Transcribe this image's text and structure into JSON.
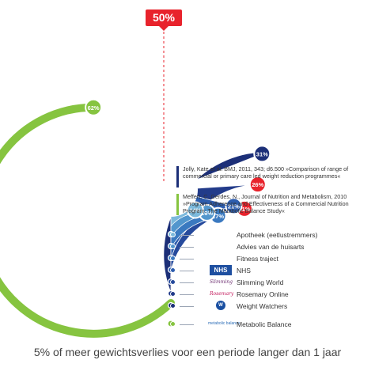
{
  "chart_data": {
    "type": "radial-bar",
    "marker": "50%",
    "series": [
      {
        "name": "Metabolic Balance",
        "value": 62,
        "label": "62%",
        "color": "#86c440"
      },
      {
        "name": "Weight Watchers",
        "value": 31,
        "label": "31%",
        "color": "#1c2f78"
      },
      {
        "name": "Rosemary Online",
        "value": 26,
        "label": "26%",
        "color": "#223b8a"
      },
      {
        "name": "Slimming World",
        "value": 21,
        "label": "21%",
        "color": "#264a9c"
      },
      {
        "name": "NHS",
        "value": 21,
        "label": "21%",
        "color": "#2d5dae"
      },
      {
        "name": "Fitness traject",
        "value": 17,
        "label": "17%",
        "color": "#3a79c0"
      },
      {
        "name": "Advies van de huisarts",
        "value": 16,
        "label": "16%",
        "color": "#5296cd"
      },
      {
        "name": "Apotheek (eetlustremmers)",
        "value": 14,
        "label": "14%",
        "color": "#7cb9dc"
      }
    ],
    "highlight_color": "#e8232c"
  },
  "legend": {
    "apotheek": "Apotheek (eetlustremmers)",
    "huisarts": "Advies van de huisarts",
    "fitness": "Fitness traject",
    "nhs": "NHS",
    "slimming": "Slimming World",
    "rosemary": "Rosemary Online",
    "weightwatchers": "Weight Watchers",
    "metabolic": "Metabolic Balance"
  },
  "logos": {
    "nhs": "NHS",
    "slimming": "Slimming",
    "rosemary": "Rosemary",
    "weightwatchers": "W",
    "metabolic": "metabolic balance"
  },
  "sources": {
    "jolly": "Jolly, Kate et al. BMJ, 2011, 343; d6.500 »Comparison of range of commercial or primary care led weight reduction programmes«",
    "meffert": "Meffert, C. Gerdes, N., Journal of Nutrition and Metabolism, 2010 »Program Adherence and Effectiveness of a Commercial Nutrition Program: The Metabolic Balance Study«"
  },
  "footer": "5% of meer gewichtsverlies voor een periode langer dan 1 jaar"
}
